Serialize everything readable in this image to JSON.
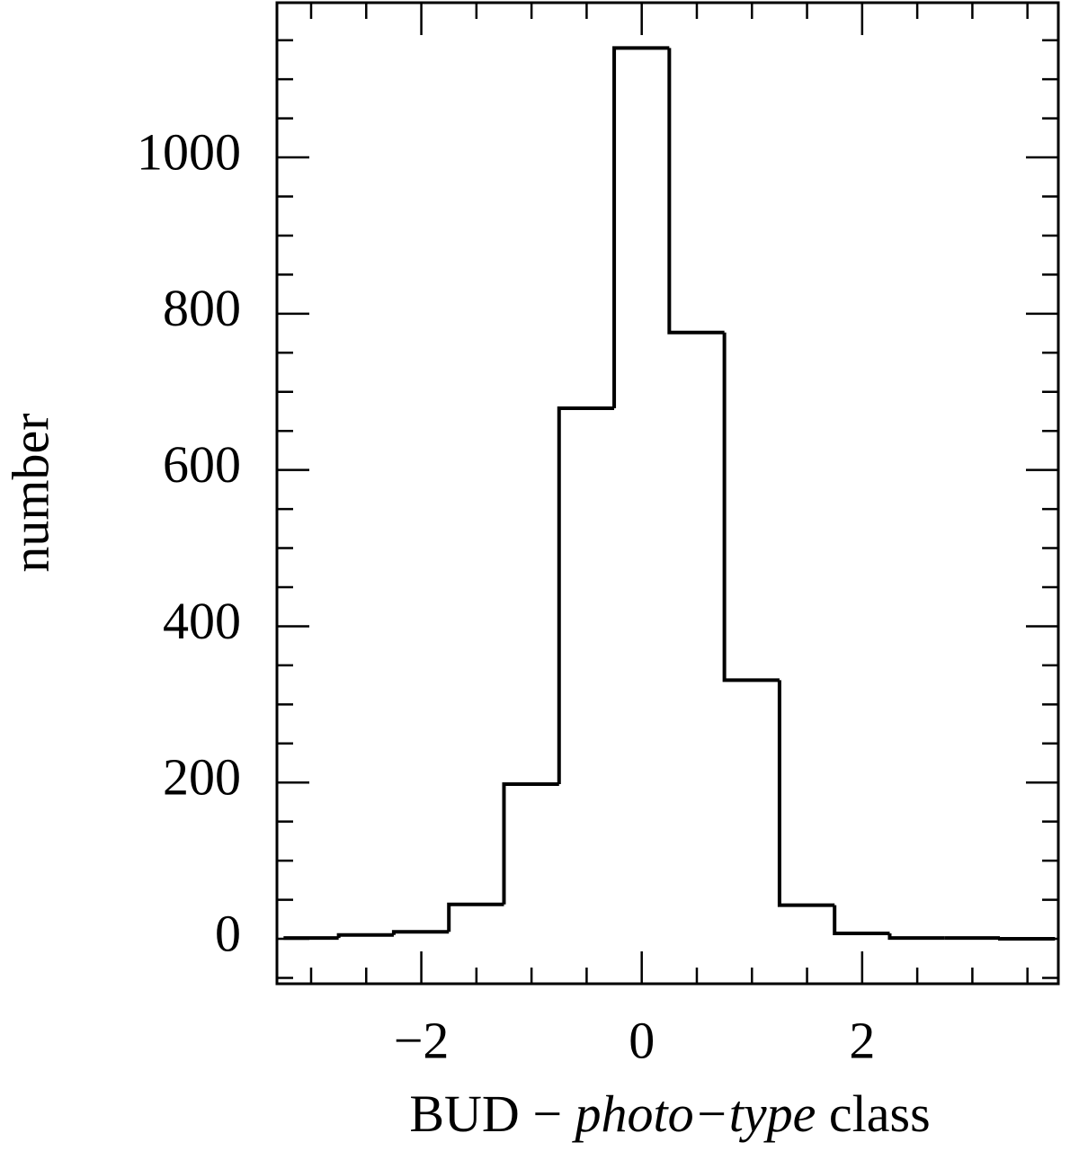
{
  "chart_data": {
    "type": "histogram",
    "xlabel": [
      "BUD − ",
      "photo−type",
      " class"
    ],
    "ylabel": "number",
    "bins": [
      -3.25,
      -2.75,
      -2.25,
      -1.75,
      -1.25,
      -0.75,
      -0.25,
      0.25,
      0.75,
      1.25,
      1.75,
      2.25,
      2.75,
      3.25,
      3.75
    ],
    "values": [
      1,
      5,
      9,
      44,
      198,
      679,
      1140,
      776,
      331,
      43,
      7,
      1,
      1,
      0
    ],
    "color": "#000000",
    "xlim": [
      -3.31,
      3.78
    ],
    "ylim": [
      -57.5,
      1198
    ],
    "xticks": [
      {
        "value": -2,
        "label": "−2"
      },
      0,
      2
    ],
    "yticks": [
      0,
      200,
      400,
      600,
      800,
      1000
    ],
    "x_minor_ticks": [
      -3,
      -2.5,
      -1.5,
      -1,
      -0.5,
      0.5,
      1,
      1.5,
      2.5,
      3,
      3.5
    ],
    "y_minor_ticks": [
      -50,
      50,
      100,
      150,
      250,
      300,
      350,
      450,
      500,
      550,
      650,
      700,
      750,
      850,
      900,
      950,
      1050,
      1100,
      1150
    ],
    "grid": false
  }
}
